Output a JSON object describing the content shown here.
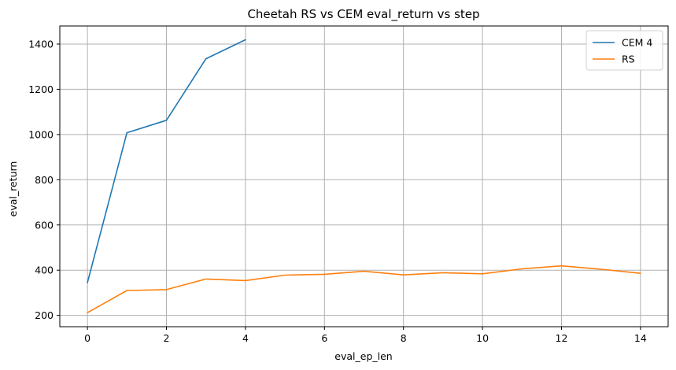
{
  "chart_data": {
    "type": "line",
    "title": "Cheetah RS vs CEM eval_return vs step",
    "xlabel": "eval_ep_len",
    "ylabel": "eval_return",
    "xlim": [
      -0.7,
      14.7
    ],
    "ylim": [
      150,
      1480
    ],
    "xticks": [
      0,
      2,
      4,
      6,
      8,
      10,
      12,
      14
    ],
    "yticks": [
      200,
      400,
      600,
      800,
      1000,
      1200,
      1400
    ],
    "grid": true,
    "legend_position": "top-right",
    "series": [
      {
        "name": "CEM 4",
        "color": "#1f77b4",
        "x": [
          0,
          1,
          2,
          3,
          4
        ],
        "y": [
          345,
          1008,
          1063,
          1335,
          1419
        ]
      },
      {
        "name": "RS",
        "color": "#ff7f0e",
        "x": [
          0,
          1,
          2,
          3,
          4,
          5,
          6,
          7,
          8,
          9,
          10,
          11,
          12,
          13,
          14
        ],
        "y": [
          212,
          310,
          314,
          361,
          354,
          378,
          382,
          395,
          379,
          389,
          384,
          406,
          419,
          404,
          386
        ]
      }
    ]
  }
}
